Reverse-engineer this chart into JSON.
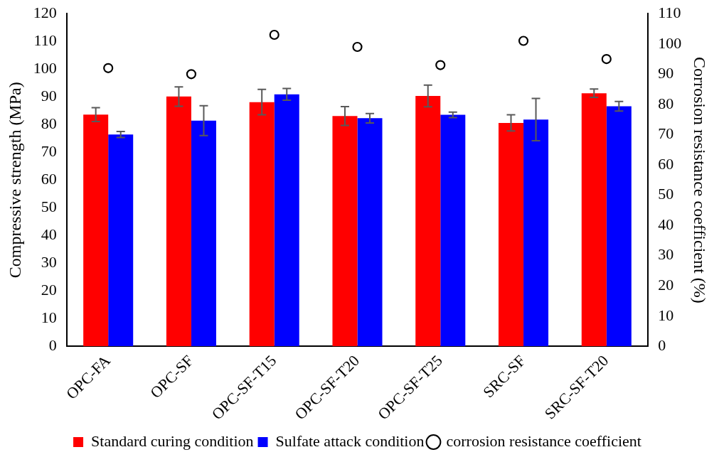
{
  "chart_data": {
    "type": "bar",
    "ylabel": "Compressive strength (MPa)",
    "y2label": "Corrosion resistance coefficient (%)",
    "categories": [
      "OPC-FA",
      "OPC-SF",
      "OPC-SF-T15",
      "OPC-SF-T20",
      "OPC-SF-T25",
      "SRC-SF",
      "SRC-SF-T20"
    ],
    "series": [
      {
        "name": "Standard curing condition",
        "color": "#ff0000",
        "values": [
          83.6,
          90.1,
          88.1,
          83.1,
          90.3,
          80.6,
          91.3
        ],
        "errors": [
          2.5,
          3.5,
          4.6,
          3.4,
          3.9,
          2.9,
          1.5
        ]
      },
      {
        "name": "Sulfate attack condition",
        "color": "#0000ff",
        "values": [
          76.4,
          81.4,
          90.9,
          82.3,
          83.5,
          81.8,
          86.6
        ],
        "errors": [
          1.1,
          5.4,
          2.1,
          1.7,
          1.0,
          7.6,
          1.7
        ]
      },
      {
        "name": "corrosion resistance coefficient",
        "type": "scatter",
        "axis": "y2",
        "marker": "circle",
        "color": "#000000",
        "values": [
          92,
          90,
          103,
          99,
          93,
          101,
          95
        ]
      }
    ],
    "ylim": [
      0,
      120
    ],
    "yticks": [
      0,
      10,
      20,
      30,
      40,
      50,
      60,
      70,
      80,
      90,
      100,
      110,
      120
    ],
    "y2lim": [
      0,
      110
    ],
    "y2ticks": [
      0,
      10,
      20,
      30,
      40,
      50,
      60,
      70,
      80,
      90,
      100,
      110
    ],
    "grid": false,
    "legend": "bottom"
  }
}
